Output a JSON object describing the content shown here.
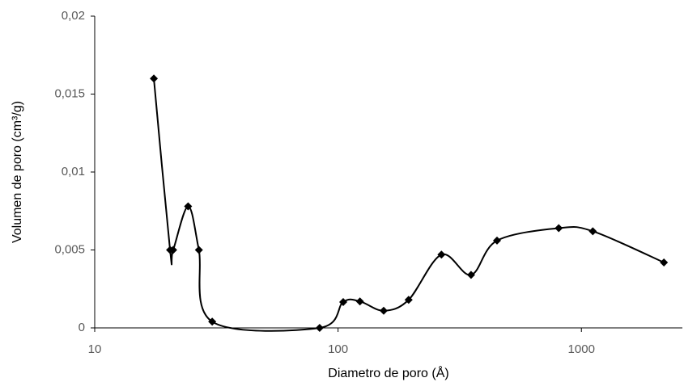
{
  "chart_data": {
    "type": "line",
    "smooth": true,
    "xscale": "log",
    "x_label": "Diametro de poro (Å)",
    "y_label": "Volumen de poro (cm³/g)",
    "series": [
      {
        "color": "#000000",
        "x": [
          17.5,
          20.4,
          21,
          24.2,
          26.8,
          30.4,
          84,
          105,
          123,
          154,
          195,
          266,
          352,
          450,
          807,
          1114,
          2183
        ],
        "values": [
          0.016,
          0.005,
          0.005,
          0.0078,
          0.005,
          0.0004,
          0,
          0.00166,
          0.0017,
          0.0011,
          0.0018,
          0.0047,
          0.0034,
          0.0056,
          0.0064,
          0.0062,
          0.0042
        ]
      }
    ],
    "xlim": [
      10,
      2600
    ],
    "xticks": [
      10,
      100,
      1000
    ],
    "ylim": [
      0,
      0.02
    ],
    "yticks": [
      0,
      {
        "value": 0.005,
        "label": "0,005"
      },
      {
        "value": 0.01,
        "label": "0,01"
      },
      {
        "value": 0.015,
        "label": "0,015"
      },
      {
        "value": 0.02,
        "label": "0,02"
      }
    ],
    "grid": false
  }
}
